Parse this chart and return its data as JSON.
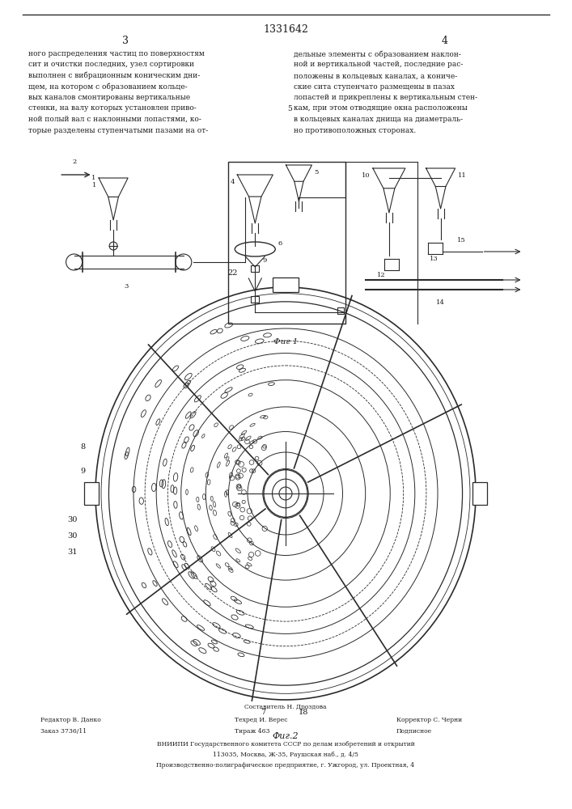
{
  "page_number": "1331642",
  "col_left_num": "3",
  "col_right_num": "4",
  "text_col_left": "ного распределения частиц по поверхностям\nсит и очистки последних, узел сортировки\nвыполнен с вибрационным коническим дни-\nщем, на котором с образованием кольце-\nвых каналов смонтированы вертикальные\nстенки, на валу которых установлен приво-\nной полый вал с наклонными лопастями, ко-\nторые разделены ступенчатыми пазами на от-",
  "text_col_right": "дельные элементы с образованием наклон-\nной и вертикальной частей, последние рас-\nположены в кольцевых каналах, а кониче-\nские сита ступенчато размещены в пазах\nлопастей и прикреплены к вертикальным стен-\nкам, при этом отводящие окна расположены\nв кольцевых каналах днища на диаметраль-\nно противоположных сторонах.",
  "fig1_caption": "Фиг 1",
  "fig2_caption": "Фиг.2",
  "footer_sestavitel": "Составитель Н. Дроздова",
  "footer_redaktor": "Редактор В. Данко",
  "footer_tehred": "Техред И. Верес",
  "footer_korrektor": "Корректор С. Черни",
  "footer_zakaz": "Заказ 3736/11",
  "footer_tirazh": "Тираж 463",
  "footer_podpisnoe": "Подписное",
  "footer_vniiipi": "ВНИИПИ Государственного комитета СССР по делам изобретений и открытий",
  "footer_address": "113035, Москва, Ж-35, Раушская наб., д. 4/5",
  "footer_proizv": "Производственно-полиграфическое предприятие, г. Ужгород, ул. Проектная, 4",
  "line_color": "#2a2a2a",
  "text_color": "#1a1a1a"
}
